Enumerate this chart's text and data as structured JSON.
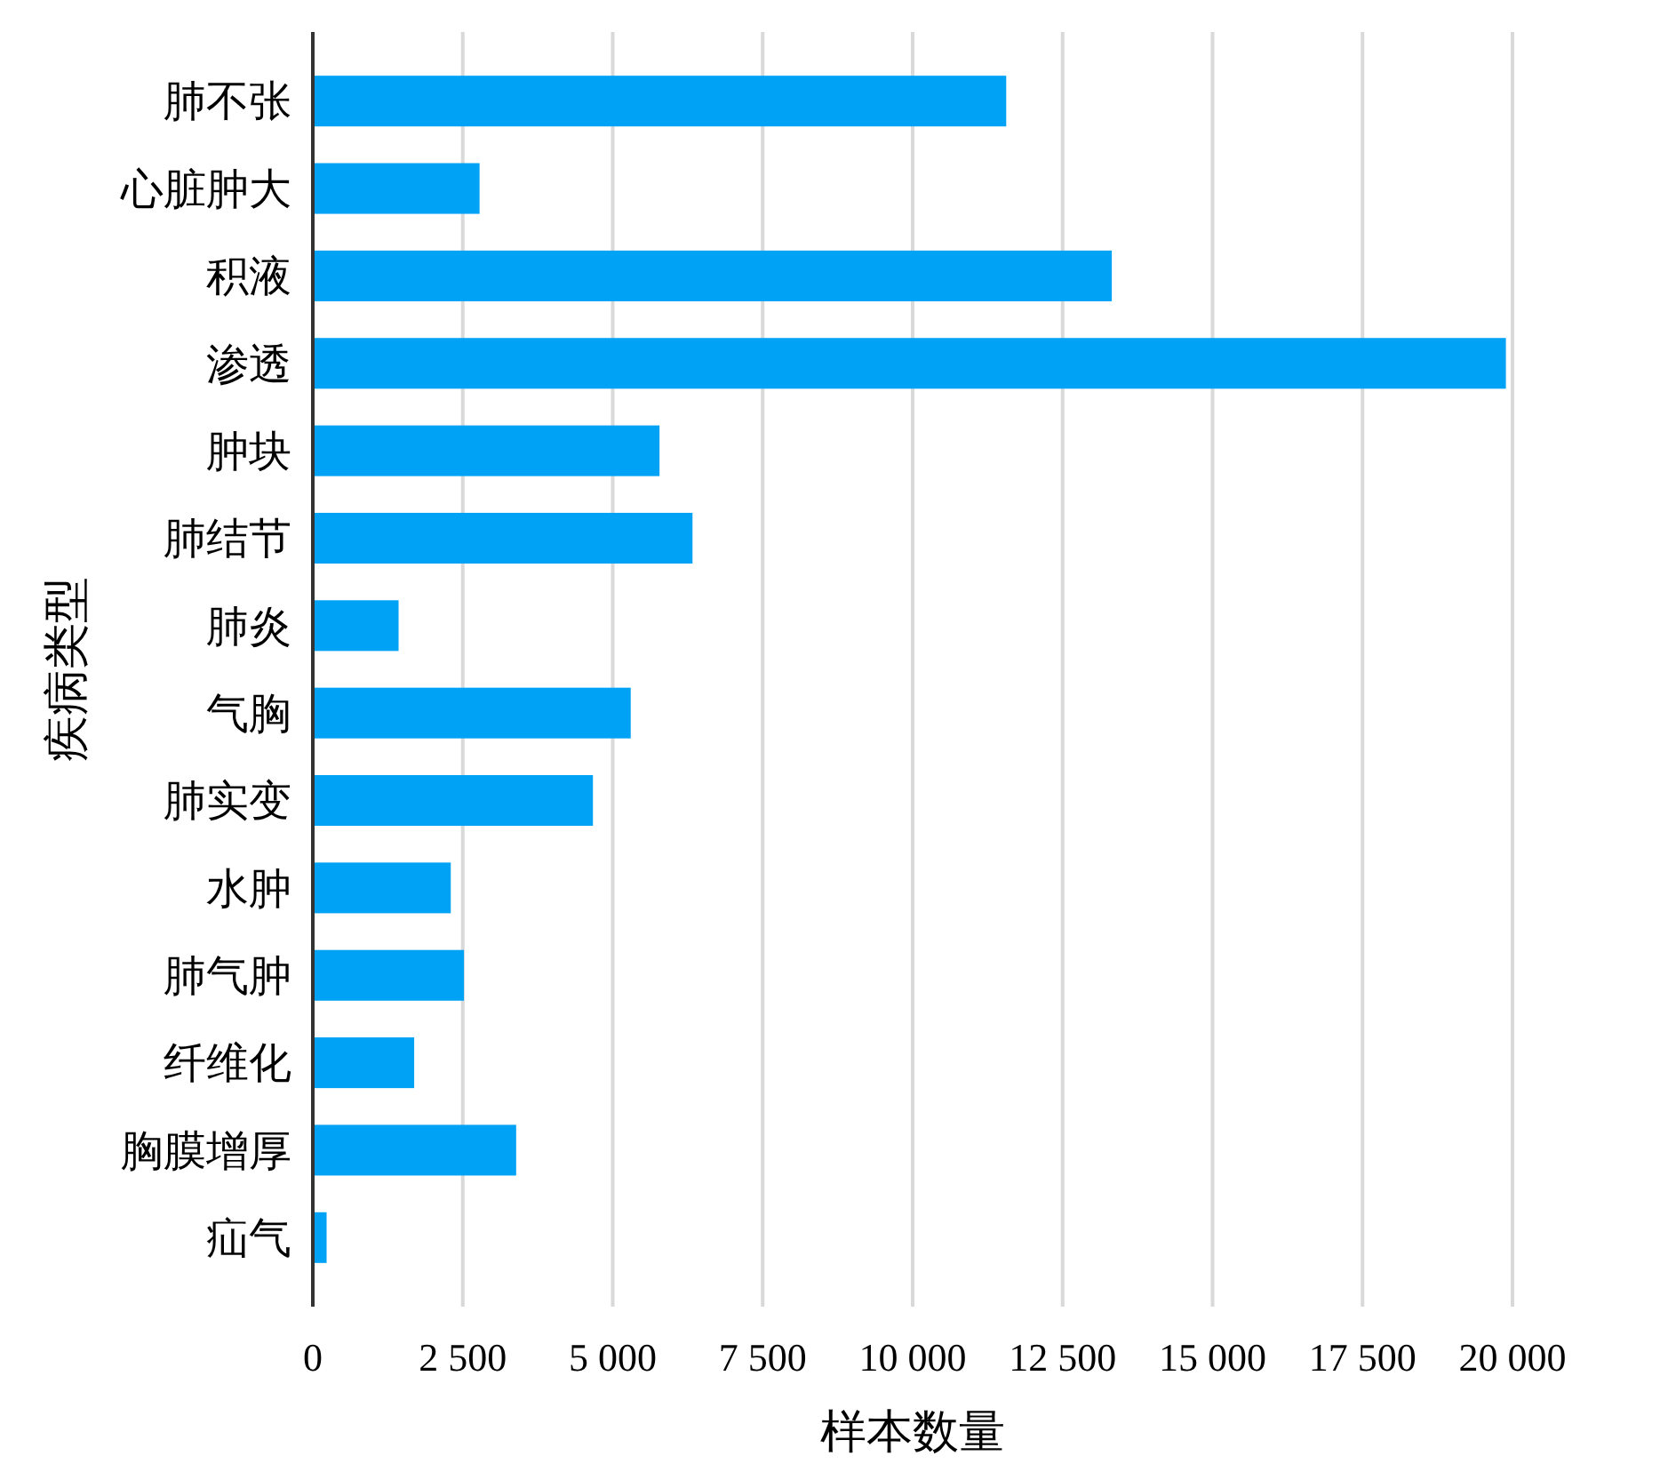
{
  "chart_data": {
    "type": "bar",
    "orientation": "horizontal",
    "xlabel": "样本数量",
    "ylabel": "疾病类型",
    "categories": [
      "肺不张",
      "心脏肿大",
      "积液",
      "渗透",
      "肿块",
      "肺结节",
      "肺炎",
      "气胸",
      "肺实变",
      "水肿",
      "肺气肿",
      "纤维化",
      "胸膜增厚",
      "疝气"
    ],
    "values": [
      11560,
      2780,
      13320,
      19890,
      5780,
      6330,
      1430,
      5300,
      4670,
      2300,
      2520,
      1690,
      3390,
      230
    ],
    "color": "#00a2f5",
    "xlim": [
      0,
      20000
    ],
    "xticks": [
      0,
      {
        "value": 2500,
        "label": "2 500"
      },
      {
        "value": 5000,
        "label": "5 000"
      },
      {
        "value": 7500,
        "label": "7 500"
      },
      {
        "value": 10000,
        "label": "10 000"
      },
      {
        "value": 12500,
        "label": "12 500"
      },
      {
        "value": 15000,
        "label": "15 000"
      },
      {
        "value": 17500,
        "label": "17 500"
      },
      {
        "value": 20000,
        "label": "20 000"
      }
    ],
    "grid": "x"
  }
}
